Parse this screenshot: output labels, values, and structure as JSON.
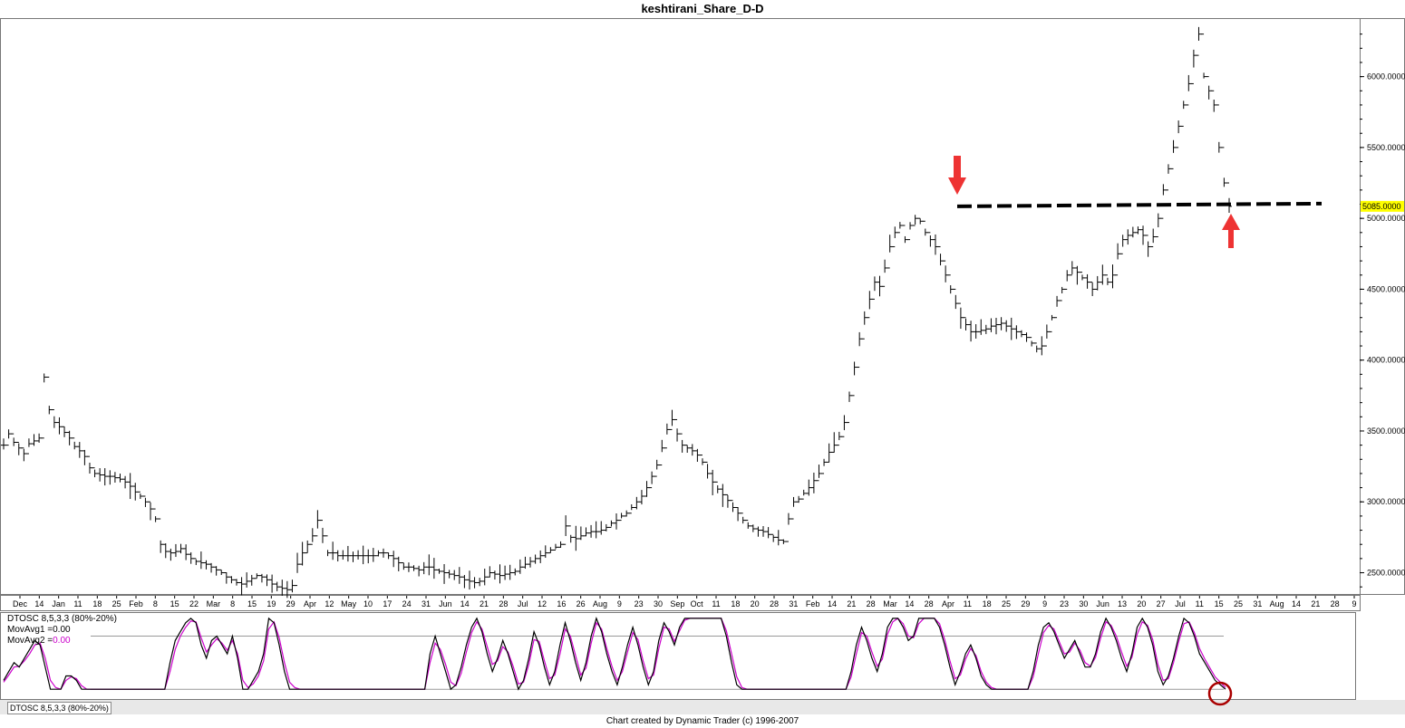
{
  "window_title": "keshtirani_Share_D-D",
  "footer": "Chart created by Dynamic Trader  (c) 1996-2007",
  "oscillator": {
    "name": "DTOSC 8,5,3,3 (80%-20%)",
    "tab_label": "DTOSC 8,5,3,3 (80%-20%)",
    "ma1_label": "MovAvg1 =",
    "ma1_value": "0.00",
    "ma2_label": "MovAvg2 =",
    "ma2_value": "0.00",
    "upper_level": 80,
    "lower_level": 20
  },
  "colors": {
    "price": "#000000",
    "ma2": "#cc00cc",
    "arrow": "#ee3333",
    "marker_circle": "#aa0000",
    "highlight": "#ffff00"
  },
  "chart_data": {
    "type": "line",
    "title": "keshtirani_Share_D-D",
    "y_ticks": [
      "2500.0000",
      "3000.0000",
      "3500.0000",
      "4000.0000",
      "4500.0000",
      "5000.0000",
      "5500.0000",
      "6000.0000"
    ],
    "ylim": [
      2350,
      6400
    ],
    "highlight_label": "5085.0000",
    "highlight_value": 5085,
    "x_tick_labels": [
      "Dec",
      "14",
      "Jan",
      "11",
      "18",
      "25",
      "Feb",
      "8",
      "15",
      "22",
      "Mar",
      "8",
      "15",
      "19",
      "29",
      "Apr",
      "12",
      "May",
      "10",
      "17",
      "24",
      "31",
      "Jun",
      "14",
      "21",
      "28",
      "Jul",
      "12",
      "16",
      "26",
      "Aug",
      "9",
      "23",
      "30",
      "Sep",
      "Oct",
      "11",
      "18",
      "20",
      "28",
      "31",
      "Feb",
      "14",
      "21",
      "28",
      "Mar",
      "14",
      "28",
      "Apr",
      "11",
      "18",
      "25",
      "29",
      "9",
      "23",
      "30",
      "Jun",
      "13",
      "20",
      "27",
      "Jul",
      "11",
      "15",
      "25",
      "31",
      "Aug",
      "14",
      "21",
      "28",
      "9"
    ],
    "series": [
      {
        "name": "price",
        "values": [
          3400,
          3480,
          3420,
          3380,
          3340,
          3410,
          3430,
          3450,
          3880,
          3650,
          3560,
          3530,
          3490,
          3450,
          3390,
          3360,
          3320,
          3240,
          3200,
          3190,
          3180,
          3180,
          3170,
          3160,
          3140,
          3110,
          3070,
          3040,
          3000,
          2950,
          2880,
          2700,
          2650,
          2640,
          2650,
          2670,
          2630,
          2600,
          2580,
          2570,
          2560,
          2540,
          2520,
          2500,
          2470,
          2450,
          2430,
          2420,
          2440,
          2460,
          2480,
          2470,
          2450,
          2420,
          2400,
          2390,
          2380,
          2410,
          2560,
          2640,
          2700,
          2760,
          2870,
          2760,
          2640,
          2640,
          2620,
          2620,
          2620,
          2620,
          2620,
          2620,
          2620,
          2620,
          2640,
          2640,
          2620,
          2600,
          2570,
          2540,
          2540,
          2530,
          2520,
          2540,
          2540,
          2520,
          2510,
          2500,
          2490,
          2480,
          2470,
          2450,
          2440,
          2430,
          2440,
          2470,
          2500,
          2490,
          2480,
          2490,
          2500,
          2510,
          2540,
          2560,
          2580,
          2600,
          2620,
          2640,
          2660,
          2680,
          2700,
          2830,
          2750,
          2740,
          2760,
          2780,
          2790,
          2790,
          2800,
          2820,
          2850,
          2870,
          2900,
          2920,
          2960,
          3000,
          3040,
          3100,
          3180,
          3260,
          3380,
          3510,
          3580,
          3480,
          3400,
          3380,
          3360,
          3330,
          3280,
          3200,
          3140,
          3090,
          3050,
          3010,
          2960,
          2920,
          2870,
          2830,
          2810,
          2800,
          2790,
          2770,
          2750,
          2730,
          2720,
          2880,
          3000,
          3020,
          3060,
          3100,
          3150,
          3200,
          3280,
          3350,
          3400,
          3460,
          3560,
          3750,
          3950,
          4150,
          4300,
          4430,
          4550,
          4520,
          4650,
          4800,
          4900,
          4950,
          4850,
          4950,
          5000,
          4980,
          4900,
          4850,
          4800,
          4700,
          4600,
          4500,
          4400,
          4300,
          4250,
          4200,
          4200,
          4210,
          4220,
          4240,
          4250,
          4260,
          4240,
          4220,
          4200,
          4180,
          4160,
          4120,
          4080,
          4100,
          4200,
          4300,
          4420,
          4500,
          4600,
          4650,
          4620,
          4580,
          4550,
          4500,
          4550,
          4600,
          4550,
          4600,
          4750,
          4850,
          4880,
          4900,
          4920,
          4880,
          4800,
          4870,
          5000,
          5200,
          5350,
          5500,
          5650,
          5800,
          5950,
          6150,
          6300,
          6000,
          5900,
          5800,
          5500,
          5250,
          5085
        ]
      },
      {
        "name": "DTOSC",
        "values": [
          30,
          40,
          50,
          45,
          55,
          65,
          75,
          70,
          45,
          20,
          20,
          20,
          35,
          35,
          30,
          20,
          20,
          20,
          20,
          20,
          20,
          20,
          20,
          20,
          20,
          20,
          20,
          20,
          20,
          20,
          20,
          20,
          50,
          75,
          85,
          95,
          100,
          95,
          70,
          55,
          75,
          80,
          70,
          60,
          80,
          55,
          20,
          20,
          30,
          40,
          60,
          100,
          95,
          70,
          40,
          20,
          20,
          20,
          20,
          20,
          20,
          20,
          20,
          20,
          20,
          20,
          20,
          20,
          20,
          20,
          20,
          20,
          20,
          20,
          20,
          20,
          20,
          20,
          20,
          20,
          20,
          20,
          60,
          80,
          60,
          40,
          20,
          25,
          45,
          70,
          90,
          100,
          85,
          60,
          40,
          55,
          75,
          60,
          40,
          20,
          30,
          55,
          85,
          70,
          45,
          25,
          40,
          70,
          95,
          75,
          50,
          30,
          50,
          80,
          100,
          85,
          60,
          40,
          25,
          45,
          70,
          90,
          70,
          45,
          25,
          40,
          75,
          95,
          85,
          70,
          90,
          100,
          100,
          100,
          100,
          100,
          100,
          100,
          100,
          80,
          50,
          25,
          20,
          20,
          20,
          20,
          20,
          20,
          20,
          20,
          20,
          20,
          20,
          20,
          20,
          20,
          20,
          20,
          20,
          20,
          20,
          20,
          20,
          40,
          70,
          90,
          75,
          55,
          40,
          60,
          90,
          100,
          100,
          90,
          75,
          80,
          100,
          100,
          100,
          100,
          90,
          70,
          45,
          25,
          40,
          60,
          70,
          55,
          35,
          25,
          20,
          20,
          20,
          20,
          20,
          20,
          20,
          20,
          40,
          70,
          90,
          95,
          85,
          70,
          55,
          65,
          75,
          60,
          45,
          45,
          60,
          85,
          100,
          90,
          75,
          55,
          40,
          60,
          90,
          100,
          90,
          70,
          40,
          25,
          35,
          55,
          80,
          100,
          95,
          80,
          60,
          50,
          40,
          30,
          25,
          20
        ]
      },
      {
        "name": "MovAvg2",
        "values": [
          28,
          36,
          45,
          46,
          52,
          60,
          70,
          72,
          55,
          30,
          22,
          20,
          30,
          34,
          32,
          24,
          20,
          20,
          20,
          20,
          20,
          20,
          20,
          20,
          20,
          20,
          20,
          20,
          20,
          20,
          20,
          20,
          40,
          65,
          80,
          90,
          97,
          96,
          78,
          62,
          70,
          77,
          72,
          64,
          75,
          60,
          30,
          22,
          26,
          35,
          52,
          88,
          96,
          78,
          50,
          28,
          22,
          20,
          20,
          20,
          20,
          20,
          20,
          20,
          20,
          20,
          20,
          20,
          20,
          20,
          20,
          20,
          20,
          20,
          20,
          20,
          20,
          20,
          20,
          20,
          20,
          20,
          50,
          72,
          65,
          48,
          28,
          24,
          38,
          62,
          84,
          96,
          88,
          68,
          48,
          52,
          68,
          62,
          46,
          26,
          28,
          48,
          76,
          74,
          52,
          32,
          36,
          60,
          88,
          80,
          58,
          36,
          44,
          72,
          95,
          88,
          66,
          46,
          30,
          40,
          62,
          84,
          76,
          52,
          32,
          36,
          66,
          90,
          88,
          74,
          86,
          98,
          100,
          100,
          100,
          100,
          100,
          100,
          100,
          86,
          60,
          34,
          22,
          20,
          20,
          20,
          20,
          20,
          20,
          20,
          20,
          20,
          20,
          20,
          20,
          20,
          20,
          20,
          20,
          20,
          20,
          20,
          20,
          34,
          60,
          84,
          80,
          62,
          46,
          54,
          82,
          96,
          100,
          94,
          80,
          78,
          94,
          100,
          100,
          100,
          94,
          76,
          52,
          32,
          36,
          54,
          66,
          58,
          40,
          28,
          22,
          20,
          20,
          20,
          20,
          20,
          20,
          20,
          34,
          60,
          84,
          92,
          88,
          74,
          60,
          62,
          72,
          64,
          50,
          46,
          56,
          78,
          96,
          92,
          80,
          62,
          46,
          56,
          82,
          96,
          92,
          76,
          48,
          30,
          32,
          50,
          74,
          94,
          96,
          84,
          66,
          54,
          44,
          34,
          28,
          22
        ]
      }
    ]
  }
}
